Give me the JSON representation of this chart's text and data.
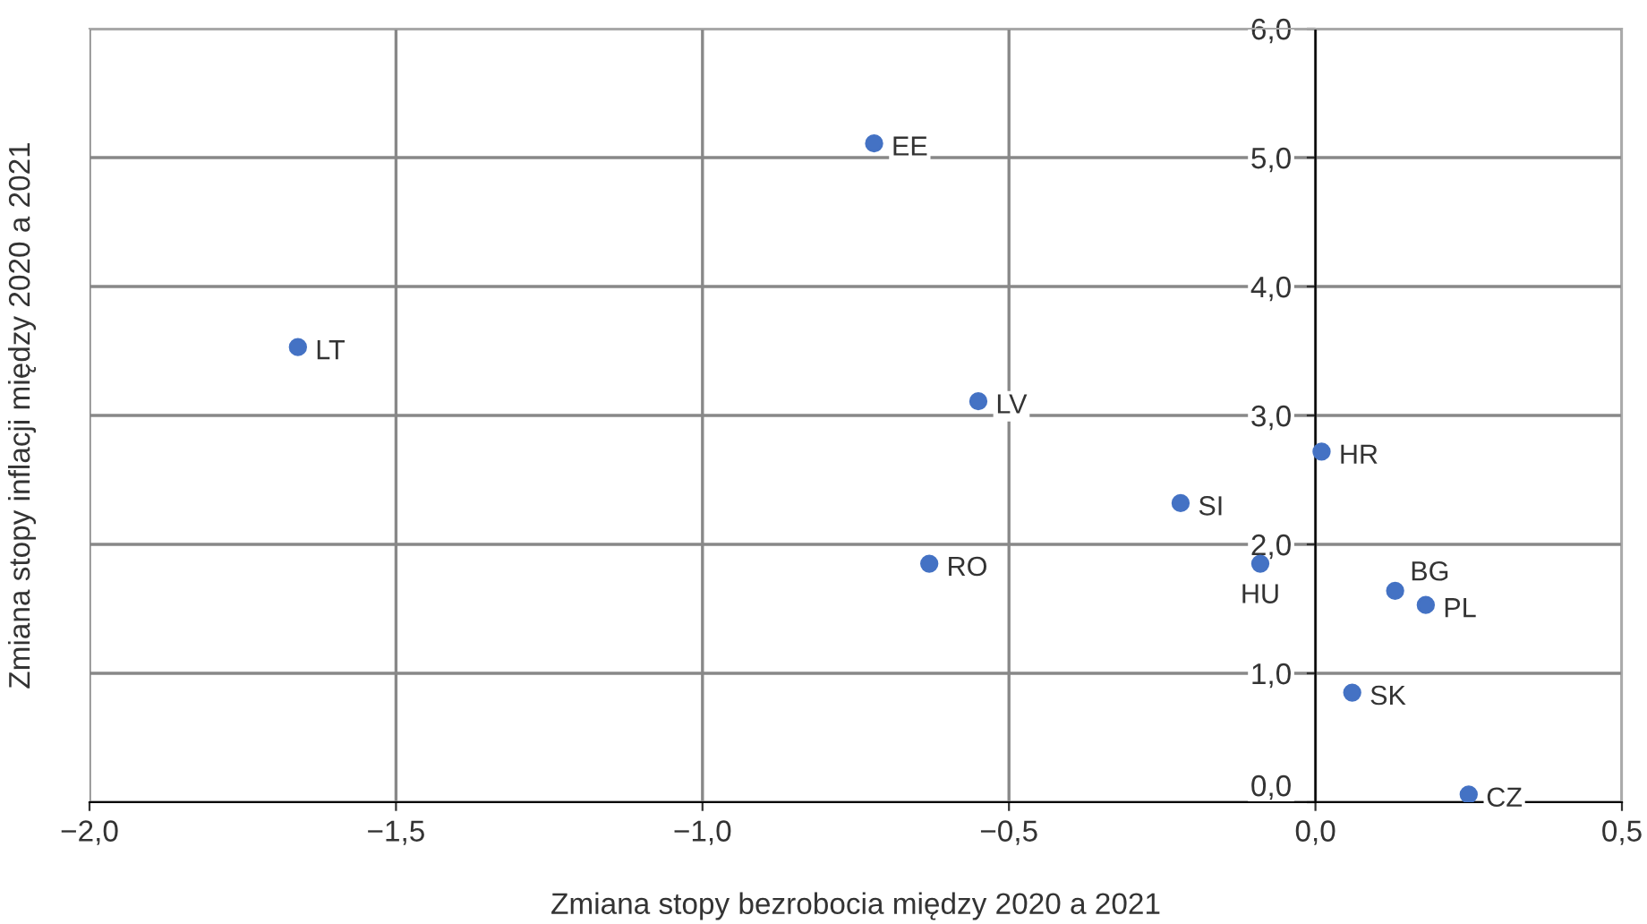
{
  "chart_data": {
    "type": "scatter",
    "xlabel": "Zmiana stopy bezrobocia między 2020 a 2021",
    "ylabel": "Zmiana stopy inflacji między 2020 a 2021",
    "x": [
      -0.72,
      -1.66,
      -0.55,
      0.01,
      -0.22,
      -0.63,
      -0.09,
      0.13,
      0.18,
      0.06,
      0.25
    ],
    "series": [
      {
        "color": "#4472c4",
        "values": [
          5.11,
          3.53,
          3.11,
          2.72,
          2.32,
          1.85,
          1.85,
          1.64,
          1.53,
          0.85,
          0.06
        ]
      }
    ],
    "annotations": [
      {
        "text": "EE",
        "x": -0.72,
        "y": 5.11
      },
      {
        "text": "LT",
        "x": -1.66,
        "y": 3.53
      },
      {
        "text": "LV",
        "x": -0.55,
        "y": 3.11
      },
      {
        "text": "HR",
        "x": 0.01,
        "y": 2.72
      },
      {
        "text": "SI",
        "x": -0.22,
        "y": 2.32
      },
      {
        "text": "RO",
        "x": -0.63,
        "y": 1.85
      },
      {
        "text": "HU",
        "x": -0.09,
        "y": 1.85
      },
      {
        "text": "BG",
        "x": 0.13,
        "y": 1.64
      },
      {
        "text": "PL",
        "x": 0.18,
        "y": 1.53
      },
      {
        "text": "SK",
        "x": 0.06,
        "y": 0.85
      },
      {
        "text": "CZ",
        "x": 0.25,
        "y": 0.06
      }
    ],
    "xlim": [
      -2.0,
      0.5
    ],
    "ylim": [
      0.0,
      6.0
    ],
    "xticks": [
      {
        "value": -2.0,
        "label": "−2,0"
      },
      {
        "value": -1.5,
        "label": "−1,5"
      },
      {
        "value": -1.0,
        "label": "−1,0"
      },
      {
        "value": -0.5,
        "label": "−0,5"
      },
      {
        "value": 0.0,
        "label": "0,0"
      },
      {
        "value": 0.5,
        "label": "0,5"
      }
    ],
    "yticks": [
      {
        "value": 0.0,
        "label": "0,0"
      },
      {
        "value": 1.0,
        "label": "1,0"
      },
      {
        "value": 2.0,
        "label": "2,0"
      },
      {
        "value": 3.0,
        "label": "3,0"
      },
      {
        "value": 4.0,
        "label": "4,0"
      },
      {
        "value": 5.0,
        "label": "5,0"
      },
      {
        "value": 6.0,
        "label": "6,0"
      }
    ],
    "grid": true,
    "marker": "circle",
    "legend": false
  }
}
